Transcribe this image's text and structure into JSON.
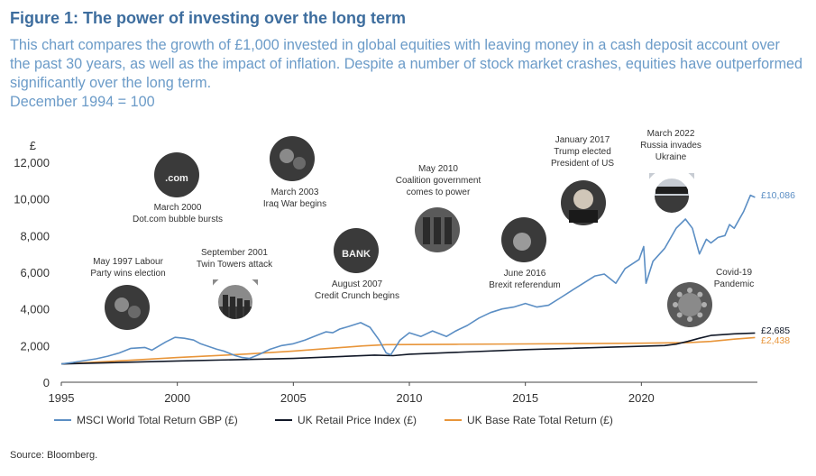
{
  "title": "Figure 1: The power of investing over the long term",
  "description": [
    "This chart compares the growth of £1,000 invested in global equities with leaving money in a cash deposit account over the past 30 years, as well as the impact of inflation. Despite a number of stock market crashes, equities have outperformed significantly over the long term.",
    "December 1994 = 100"
  ],
  "source": "Source: Bloomberg.",
  "chart_data": {
    "type": "line",
    "ylabel": "£",
    "ylim": [
      0,
      12000
    ],
    "xlim": [
      1995,
      2025
    ],
    "yticks": [
      0,
      2000,
      4000,
      6000,
      8000,
      10000,
      12000
    ],
    "ytick_labels": [
      "0",
      "2,000",
      "4,000",
      "6,000",
      "8,000",
      "10,000",
      "12,000"
    ],
    "xticks": [
      1995,
      2000,
      2005,
      2010,
      2015,
      2020
    ],
    "xtick_labels": [
      "1995",
      "2000",
      "2005",
      "2010",
      "2015",
      "2020"
    ],
    "grid": false,
    "legend_position": "bottom",
    "series": [
      {
        "name": "MSCI World Total Return GBP (£)",
        "color": "#5b8ec4",
        "end_label": "£10,086",
        "x": [
          1995.0,
          1995.5,
          1996.0,
          1996.5,
          1997.0,
          1997.5,
          1998.0,
          1998.6,
          1998.9,
          1999.5,
          1999.9,
          2000.3,
          2000.7,
          2001.0,
          2001.7,
          2002.0,
          2002.5,
          2002.8,
          2003.1,
          2003.5,
          2004.0,
          2004.5,
          2005.0,
          2005.5,
          2006.0,
          2006.4,
          2006.7,
          2007.0,
          2007.4,
          2007.9,
          2008.3,
          2008.7,
          2009.0,
          2009.2,
          2009.6,
          2010.0,
          2010.5,
          2011.0,
          2011.6,
          2012.0,
          2012.5,
          2013.0,
          2013.5,
          2014.0,
          2014.5,
          2015.0,
          2015.5,
          2016.0,
          2016.5,
          2017.0,
          2017.5,
          2018.0,
          2018.4,
          2018.9,
          2019.3,
          2019.9,
          2020.1,
          2020.2,
          2020.5,
          2021.0,
          2021.5,
          2021.9,
          2022.2,
          2022.5,
          2022.8,
          2023.0,
          2023.3,
          2023.6,
          2023.8,
          2024.0,
          2024.4,
          2024.7,
          2024.9
        ],
        "values": [
          1000,
          1080,
          1180,
          1280,
          1420,
          1600,
          1850,
          1900,
          1750,
          2200,
          2450,
          2400,
          2300,
          2100,
          1800,
          1700,
          1450,
          1350,
          1300,
          1500,
          1800,
          2000,
          2100,
          2300,
          2550,
          2750,
          2700,
          2900,
          3050,
          3250,
          3000,
          2300,
          1600,
          1500,
          2300,
          2700,
          2500,
          2800,
          2500,
          2800,
          3100,
          3500,
          3800,
          4000,
          4100,
          4300,
          4100,
          4200,
          4600,
          5000,
          5400,
          5800,
          5900,
          5400,
          6200,
          6700,
          7400,
          5400,
          6600,
          7300,
          8400,
          8900,
          8400,
          7000,
          7800,
          7600,
          7900,
          8000,
          8600,
          8400,
          9300,
          10200,
          10086
        ]
      },
      {
        "name": "UK Retail Price Index (£)",
        "color": "#111827",
        "end_label": "£2,685",
        "x": [
          1995.0,
          2000.0,
          2005.0,
          2008.5,
          2009.3,
          2010.0,
          2015.0,
          2020.0,
          2021.0,
          2021.5,
          2022.0,
          2022.5,
          2023.0,
          2024.0,
          2024.9
        ],
        "values": [
          1000,
          1160,
          1300,
          1480,
          1450,
          1530,
          1780,
          1960,
          2000,
          2080,
          2230,
          2400,
          2550,
          2640,
          2685
        ]
      },
      {
        "name": "UK Base Rate Total Return (£)",
        "color": "#e8953a",
        "end_label": "£2,438",
        "x": [
          1995.0,
          1998.0,
          2000.0,
          2003.0,
          2005.0,
          2008.0,
          2009.0,
          2012.0,
          2015.0,
          2020.0,
          2022.0,
          2023.0,
          2024.0,
          2024.9
        ],
        "values": [
          1000,
          1200,
          1350,
          1540,
          1700,
          1980,
          2050,
          2070,
          2090,
          2130,
          2160,
          2230,
          2350,
          2438
        ]
      }
    ],
    "annotations": [
      {
        "lines": [
          "May 1997 Labour",
          "Party wins election"
        ],
        "icon": "crowd-photo-icon"
      },
      {
        "lines": [
          "March 2000",
          "Dot.com bubble bursts"
        ],
        "icon": "dotcom-photo-icon",
        "photo_text": ".com"
      },
      {
        "lines": [
          "September 2001",
          "Twin Towers attack"
        ],
        "icon": "skyline-photo-icon"
      },
      {
        "lines": [
          "March 2003",
          "Iraq War begins"
        ],
        "icon": "protest-photo-icon"
      },
      {
        "lines": [
          "August 2007",
          "Credit Crunch begins"
        ],
        "icon": "bank-sign-photo-icon",
        "photo_text": "BANK"
      },
      {
        "lines": [
          "May 2010",
          "Coalition government",
          "comes to power"
        ],
        "icon": "politicians-photo-icon"
      },
      {
        "lines": [
          "June 2016",
          "Brexit referendum"
        ],
        "icon": "portrait-photo-icon"
      },
      {
        "lines": [
          "January 2017",
          "Trump elected",
          "President of US"
        ],
        "icon": "trump-photo-icon"
      },
      {
        "lines": [
          "March 2022",
          "Russia invades",
          "Ukraine"
        ],
        "icon": "tanks-photo-icon"
      },
      {
        "lines": [
          "Covid-19",
          "Pandemic"
        ],
        "icon": "virus-photo-icon"
      }
    ]
  }
}
